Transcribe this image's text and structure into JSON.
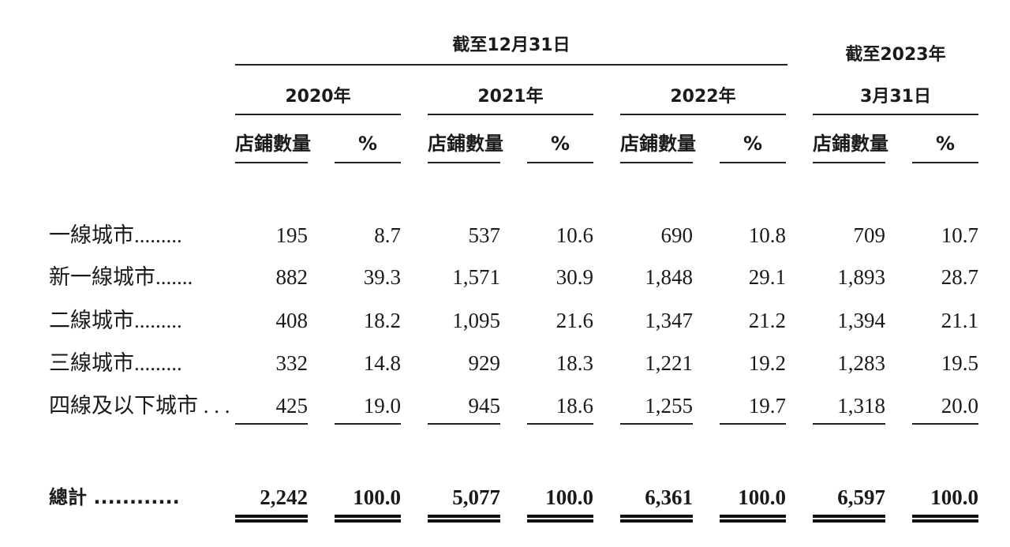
{
  "header": {
    "group1_title": "截至12月31日",
    "group2_title_line1": "截至2023年",
    "group2_title_line2": "3月31日",
    "years": [
      "2020年",
      "2021年",
      "2022年"
    ],
    "col_count_label": "店鋪數量",
    "col_pct_label": "%"
  },
  "rows": [
    {
      "label": "一線城市.........",
      "values": [
        "195",
        "8.7",
        "537",
        "10.6",
        "690",
        "10.8",
        "709",
        "10.7"
      ]
    },
    {
      "label": "新一線城市.......",
      "values": [
        "882",
        "39.3",
        "1,571",
        "30.9",
        "1,848",
        "29.1",
        "1,893",
        "28.7"
      ]
    },
    {
      "label": "二線城市.........",
      "values": [
        "408",
        "18.2",
        "1,095",
        "21.6",
        "1,347",
        "21.2",
        "1,394",
        "21.1"
      ]
    },
    {
      "label": "三線城市.........",
      "values": [
        "332",
        "14.8",
        "929",
        "18.3",
        "1,221",
        "19.2",
        "1,283",
        "19.5"
      ]
    },
    {
      "label": "四線及以下城市 . . .",
      "values": [
        "425",
        "19.0",
        "945",
        "18.6",
        "1,255",
        "19.7",
        "1,318",
        "20.0"
      ]
    }
  ],
  "total": {
    "label": "總計 ............",
    "values": [
      "2,242",
      "100.0",
      "5,077",
      "100.0",
      "6,361",
      "100.0",
      "6,597",
      "100.0"
    ]
  }
}
